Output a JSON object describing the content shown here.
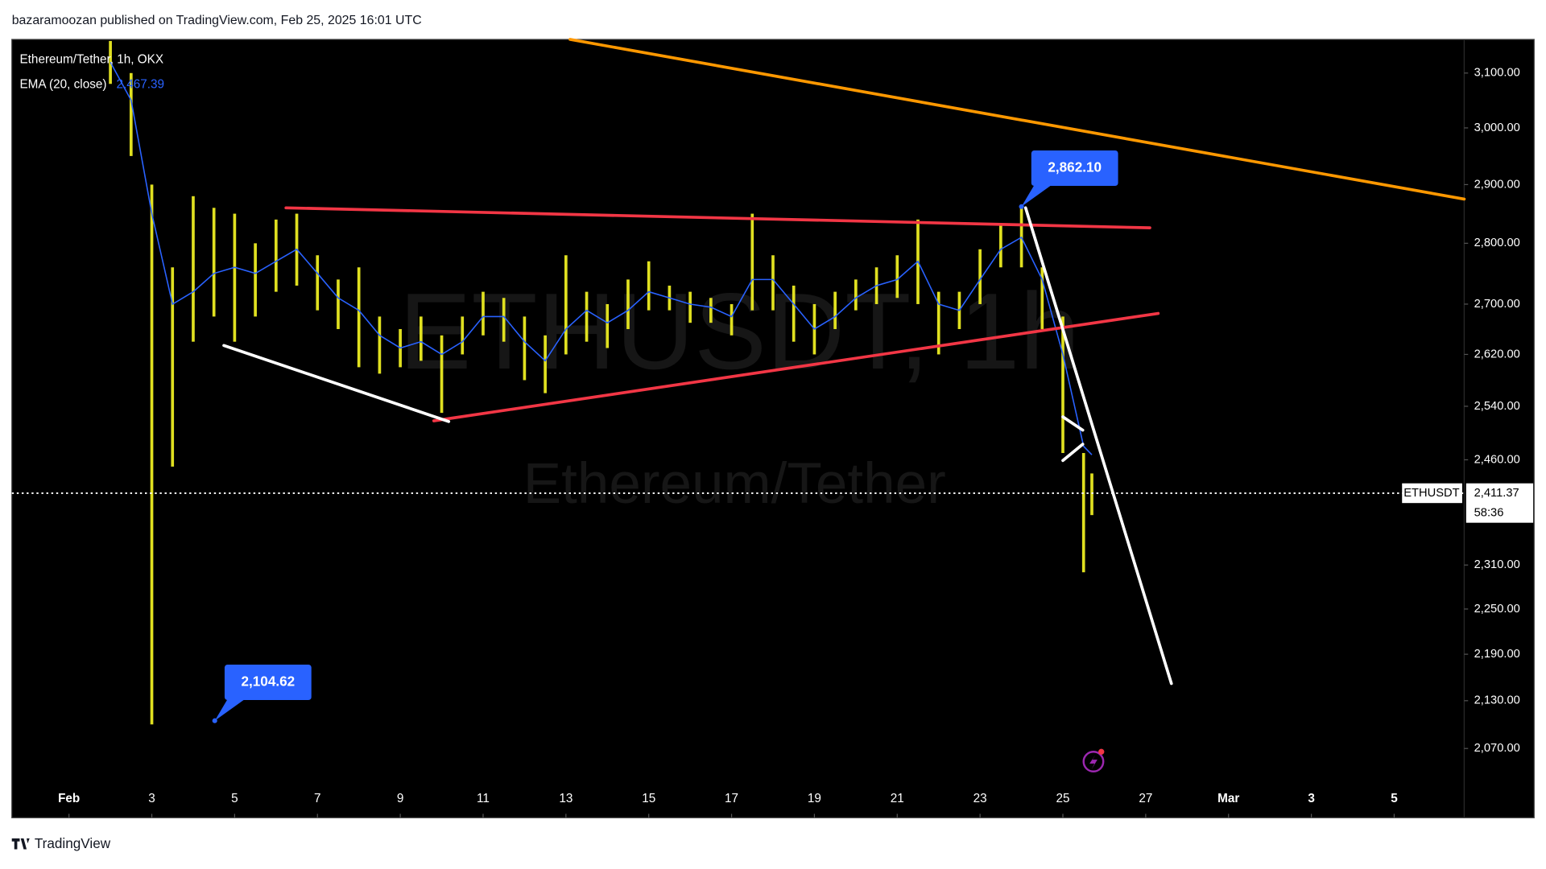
{
  "header": {
    "byline": "bazaramoozan published on TradingView.com, Feb 25, 2025 16:01 UTC"
  },
  "footer": {
    "brand": "TradingView"
  },
  "chart_data": {
    "type": "range-bar",
    "title": "Ethereum/Tether, 1h, OKX",
    "watermark": "ETHUSDT, 1h",
    "watermark_subtitle": "Ethereum/Tether",
    "color": "#e0e020",
    "log_scale": true,
    "x": [
      2.0,
      2.5,
      3.0,
      3.5,
      4.0,
      4.5,
      5.0,
      5.5,
      6.0,
      6.5,
      7.0,
      7.5,
      8.0,
      8.5,
      9.0,
      9.5,
      10.0,
      10.5,
      11.0,
      11.5,
      12.0,
      12.5,
      13.0,
      13.5,
      14.0,
      14.5,
      15.0,
      15.5,
      16.0,
      16.5,
      17.0,
      17.5,
      18.0,
      18.5,
      19.0,
      19.5,
      20.0,
      20.5,
      21.0,
      21.5,
      22.0,
      22.5,
      23.0,
      23.5,
      24.0,
      24.5,
      25.0,
      25.5,
      25.7
    ],
    "high": [
      3160,
      3100,
      2900,
      2760,
      2880,
      2860,
      2850,
      2800,
      2840,
      2850,
      2780,
      2740,
      2760,
      2680,
      2660,
      2680,
      2650,
      2680,
      2720,
      2710,
      2680,
      2650,
      2780,
      2720,
      2700,
      2740,
      2770,
      2730,
      2720,
      2710,
      2700,
      2850,
      2780,
      2730,
      2700,
      2720,
      2740,
      2760,
      2780,
      2840,
      2720,
      2720,
      2790,
      2830,
      2862,
      2760,
      2680,
      2470,
      2440
    ],
    "low": [
      3080,
      2950,
      2100,
      2450,
      2640,
      2680,
      2640,
      2680,
      2720,
      2730,
      2690,
      2660,
      2600,
      2590,
      2600,
      2610,
      2530,
      2620,
      2650,
      2640,
      2580,
      2560,
      2620,
      2640,
      2630,
      2660,
      2690,
      2690,
      2670,
      2670,
      2650,
      2690,
      2690,
      2640,
      2620,
      2660,
      2690,
      2700,
      2710,
      2700,
      2620,
      2660,
      2700,
      2760,
      2760,
      2660,
      2470,
      2300,
      2380
    ],
    "ema": {
      "name": "EMA (20, close)",
      "color": "#2962ff",
      "last_label": "2,467.39",
      "values": [
        3120,
        3050,
        2850,
        2700,
        2720,
        2750,
        2760,
        2750,
        2770,
        2790,
        2750,
        2710,
        2690,
        2650,
        2630,
        2640,
        2620,
        2640,
        2680,
        2680,
        2640,
        2610,
        2660,
        2690,
        2670,
        2690,
        2720,
        2710,
        2700,
        2695,
        2680,
        2740,
        2740,
        2700,
        2660,
        2680,
        2710,
        2730,
        2740,
        2770,
        2700,
        2690,
        2740,
        2790,
        2810,
        2740,
        2620,
        2480,
        2467.39
      ]
    },
    "xlim": [
      -0.38,
      34.69
    ],
    "ylim": [
      1986,
      3163
    ],
    "xticks": [
      {
        "value": 1,
        "label": "Feb"
      },
      3,
      5,
      7,
      9,
      11,
      13,
      15,
      17,
      19,
      21,
      23,
      25,
      27,
      {
        "value": 29,
        "label": "Mar"
      },
      {
        "value": 31,
        "label": "3"
      },
      {
        "value": 33,
        "label": "5"
      }
    ],
    "yticks": [
      {
        "value": 3100,
        "label": "3,100.00"
      },
      {
        "value": 3000,
        "label": "3,000.00"
      },
      {
        "value": 2900,
        "label": "2,900.00"
      },
      {
        "value": 2800,
        "label": "2,800.00"
      },
      {
        "value": 2700,
        "label": "2,700.00"
      },
      {
        "value": 2620,
        "label": "2,620.00"
      },
      {
        "value": 2540,
        "label": "2,540.00"
      },
      {
        "value": 2460,
        "label": "2,460.00"
      },
      {
        "value": 2310,
        "label": "2,310.00"
      },
      {
        "value": 2250,
        "label": "2,250.00"
      },
      {
        "value": 2190,
        "label": "2,190.00"
      },
      {
        "value": 2130,
        "label": "2,130.00"
      },
      {
        "value": 2070,
        "label": "2,070.00"
      }
    ],
    "last_price": {
      "value": 2411.37,
      "label": "2,411.37",
      "symbol": "ETHUSDT",
      "countdown": "58:36"
    },
    "callouts": [
      {
        "x": 24.0,
        "value": 2862.1,
        "label": "2,862.10"
      },
      {
        "x": 4.52,
        "value": 2104.62,
        "label": "2,104.62"
      }
    ],
    "drawings": [
      {
        "color": "#ff9800",
        "points": [
          [
            13.1,
            3163
          ],
          [
            34.69,
            2875
          ]
        ]
      },
      {
        "color": "#f23645",
        "points": [
          [
            6.24,
            2860
          ],
          [
            27.1,
            2826
          ]
        ]
      },
      {
        "color": "#f23645",
        "points": [
          [
            9.81,
            2518
          ],
          [
            27.3,
            2685
          ]
        ]
      },
      {
        "color": "#ffffff",
        "points": [
          [
            4.74,
            2634
          ],
          [
            10.17,
            2517
          ]
        ]
      },
      {
        "color": "#ffffff",
        "points": [
          [
            24.1,
            2860
          ],
          [
            27.62,
            2152
          ]
        ]
      },
      {
        "color": "#ffffff",
        "points": [
          [
            25.0,
            2524
          ],
          [
            25.48,
            2504
          ]
        ]
      },
      {
        "color": "#ffffff",
        "points": [
          [
            25.0,
            2459
          ],
          [
            25.48,
            2483
          ]
        ]
      }
    ]
  }
}
